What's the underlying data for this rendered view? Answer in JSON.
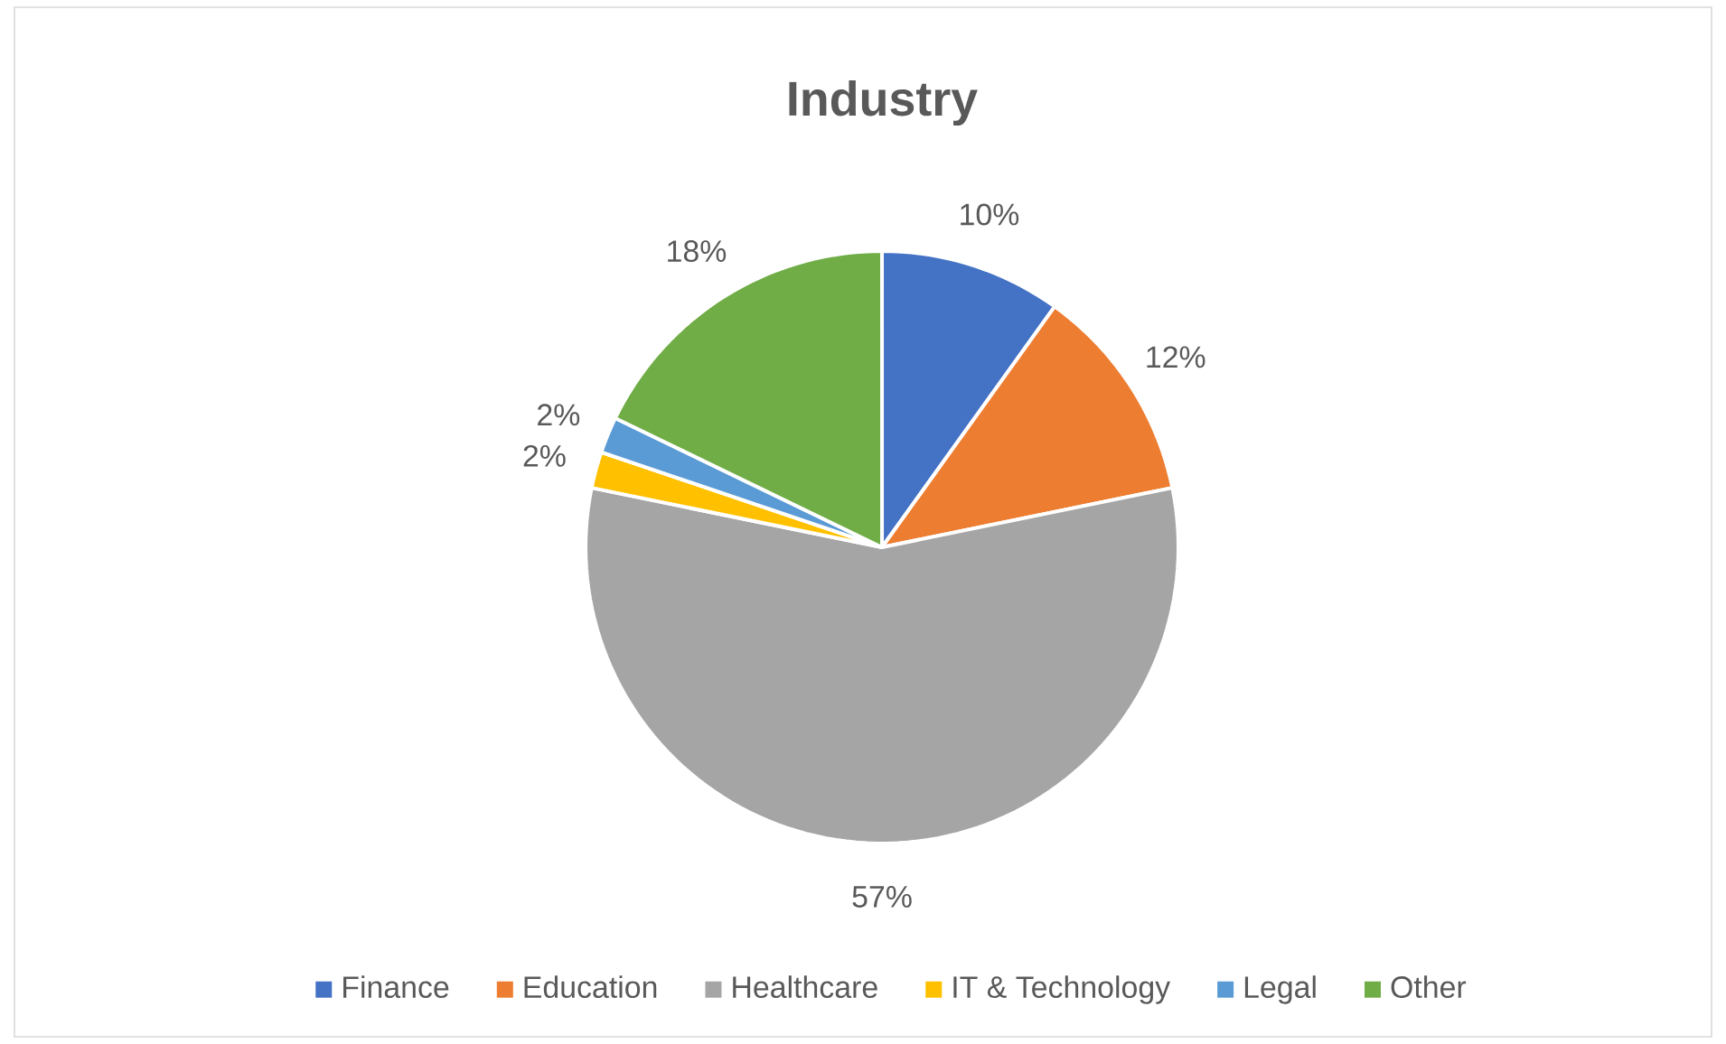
{
  "chart_data": {
    "type": "pie",
    "title": "Industry",
    "categories": [
      "Finance",
      "Education",
      "Healthcare",
      "IT & Technology",
      "Legal",
      "Other"
    ],
    "values": [
      10,
      12,
      57,
      2,
      2,
      18
    ],
    "value_labels": [
      "10%",
      "12%",
      "57%",
      "2%",
      "2%",
      "18%"
    ],
    "colors": [
      "#4472c4",
      "#ed7d31",
      "#a5a5a5",
      "#ffc000",
      "#5b9bd5",
      "#70ad47"
    ],
    "legend": "bottom"
  }
}
